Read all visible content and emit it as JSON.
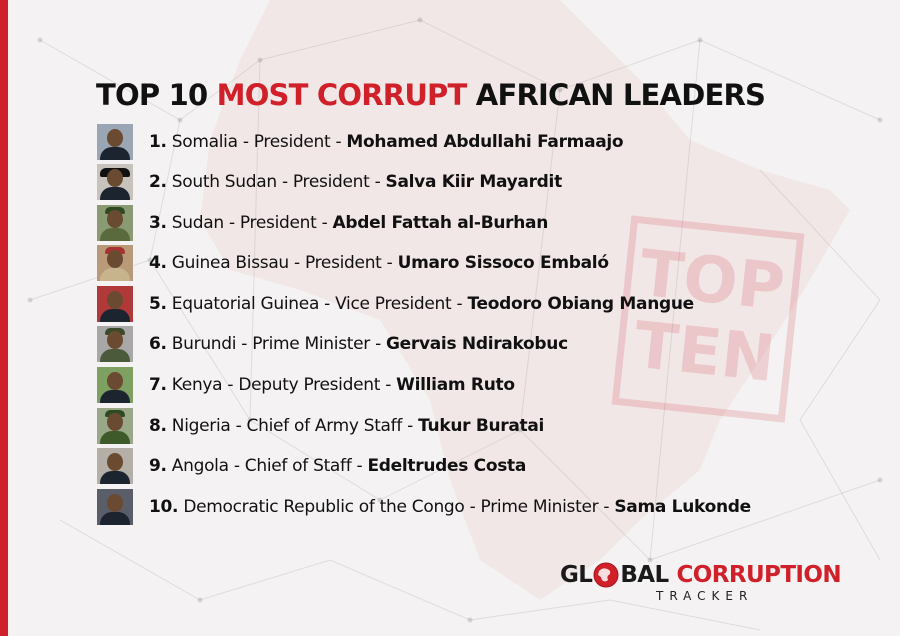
{
  "title": {
    "prefix": "TOP 10 ",
    "accent": "MOST CORRUPT",
    "suffix": " AFRICAN LEADERS"
  },
  "leaders": [
    {
      "num": "1.",
      "desc": " Somalia - President - ",
      "name": "Mohamed Abdullahi Farmaajo"
    },
    {
      "num": "2.",
      "desc": " South Sudan - President - ",
      "name": "Salva Kiir Mayardit"
    },
    {
      "num": "3.",
      "desc": " Sudan - President - ",
      "name": "Abdel Fattah al-Burhan"
    },
    {
      "num": "4.",
      "desc": " Guinea Bissau - President - ",
      "name": "Umaro Sissoco Embaló"
    },
    {
      "num": "5.",
      "desc": " Equatorial Guinea - Vice President - ",
      "name": "Teodoro Obiang Mangue"
    },
    {
      "num": "6.",
      "desc": " Burundi - Prime Minister - ",
      "name": "Gervais Ndirakobuc"
    },
    {
      "num": "7.",
      "desc": " Kenya - Deputy President - ",
      "name": "William Ruto"
    },
    {
      "num": "8.",
      "desc": " Nigeria - Chief of Army Staff - ",
      "name": "Tukur Buratai"
    },
    {
      "num": "9.",
      "desc": " Angola - Chief of Staff - ",
      "name": "Edeltrudes Costa"
    },
    {
      "num": "10.",
      "desc": " Democratic Republic of the Congo - Prime Minister - ",
      "name": "Sama Lukonde"
    }
  ],
  "stamp": {
    "line1": "TOP",
    "line2": "TEN"
  },
  "logo": {
    "part1": "GL",
    "part2": "BAL",
    "part3": "CORRUPTION",
    "sub": "TRACKER"
  },
  "colors": {
    "accent": "#d0202a",
    "text": "#111111",
    "background": "#f4f2f2"
  }
}
